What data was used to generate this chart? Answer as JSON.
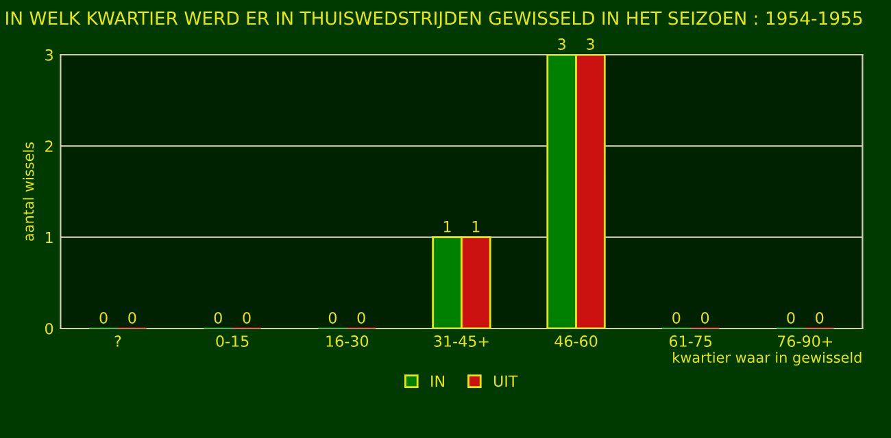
{
  "chart_data": {
    "type": "bar",
    "title": "IN WELK KWARTIER WERD ER IN THUISWEDSTRIJDEN GEWISSELD IN HET SEIZOEN : 1954-1955",
    "xlabel": "kwartier waar in gewisseld",
    "ylabel": "aantal wissels",
    "categories": [
      "?",
      "0-15",
      "16-30",
      "31-45+",
      "46-60",
      "61-75",
      "76-90+"
    ],
    "series": [
      {
        "name": "IN",
        "color": "#008000",
        "values": [
          0,
          0,
          0,
          1,
          3,
          0,
          0
        ]
      },
      {
        "name": "UIT",
        "color": "#cc1111",
        "values": [
          0,
          0,
          0,
          1,
          3,
          0,
          0
        ]
      }
    ],
    "ylim": [
      0,
      3
    ],
    "yticks": [
      0,
      1,
      2,
      3
    ],
    "grid": "y",
    "legend": "bottom",
    "data_labels": true
  }
}
